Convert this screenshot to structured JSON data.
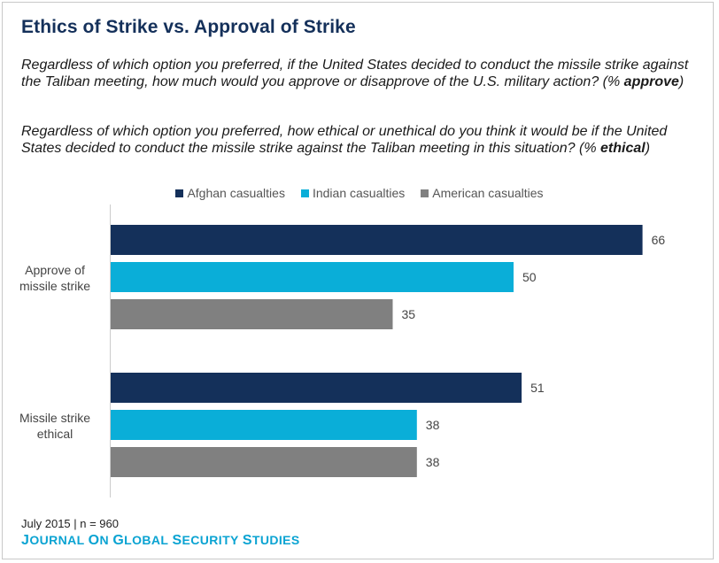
{
  "title": "Ethics of Strike vs. Approval of Strike",
  "question1": {
    "text": "Regardless of which option you preferred, if the United States decided to conduct the missile strike against the Taliban meeting, how much would you approve or disapprove of the U.S. military action? (%",
    "emphasis": "approve",
    "suffix": ")"
  },
  "question2": {
    "text": "Regardless of which option you preferred, how ethical or unethical do you think it would be if the United States decided to conduct the missile strike against the Taliban meeting in this situation? (%",
    "emphasis": "ethical",
    "suffix": ")"
  },
  "footer": "July 2015 | n = 960",
  "brand": "Journal on Global Security Studies",
  "colors": {
    "afghan": "#14305a",
    "indian": "#0aaed8",
    "american": "#808080"
  },
  "chart_data": {
    "type": "bar",
    "orientation": "horizontal",
    "categories": [
      "Approve of missile strike",
      "Missile strike ethical"
    ],
    "series": [
      {
        "name": "Afghan casualties",
        "values": [
          66,
          51
        ]
      },
      {
        "name": "Indian casualties",
        "values": [
          50,
          38
        ]
      },
      {
        "name": "American casualties",
        "values": [
          35,
          38
        ]
      }
    ],
    "xlim": [
      0,
      100
    ],
    "legend_position": "top",
    "grid": false,
    "title": "Ethics of Strike vs. Approval of Strike",
    "xlabel": "",
    "ylabel": ""
  }
}
